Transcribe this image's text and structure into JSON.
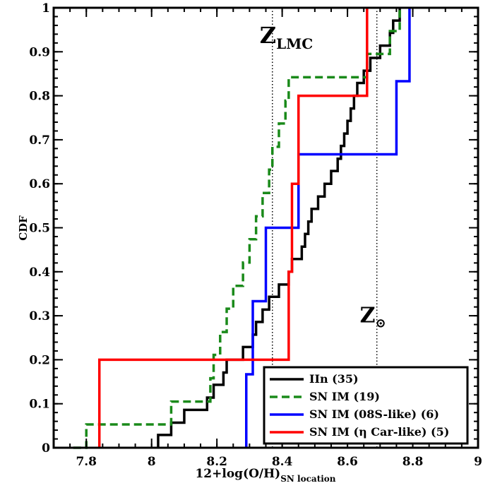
{
  "chart_data": {
    "type": "line",
    "step": true,
    "title": "",
    "xlabel": "12+log(O/H)",
    "xlabel_sub": "SN location",
    "ylabel": "CDF",
    "xlim": [
      7.7,
      9.0
    ],
    "ylim": [
      0,
      1.0
    ],
    "xticks": [
      7.8,
      8.0,
      8.2,
      8.4,
      8.6,
      8.8,
      9.0
    ],
    "xtick_labels": [
      "7.8",
      "8",
      "8.2",
      "8.4",
      "8.6",
      "8.8",
      "9"
    ],
    "yticks": [
      0,
      0.1,
      0.2,
      0.3,
      0.4,
      0.5,
      0.6,
      0.7,
      0.8,
      0.9,
      1.0
    ],
    "ytick_labels": [
      "0",
      "0.1",
      "0.2",
      "0.3",
      "0.4",
      "0.5",
      "0.6",
      "0.7",
      "0.8",
      "0.9",
      "1"
    ],
    "grid": false,
    "legend_position": "bottom-right",
    "reference_lines": [
      {
        "x": 8.37,
        "label": "Z",
        "sub": "LMC",
        "label_y": 0.92
      },
      {
        "x": 8.69,
        "label": "Z",
        "sub": "⊙",
        "label_y": 0.285
      }
    ],
    "series": [
      {
        "name": "IIn (35)",
        "color": "#000000",
        "dash": "solid",
        "x": [
          8.02,
          8.06,
          8.1,
          8.17,
          8.19,
          8.22,
          8.23,
          8.28,
          8.31,
          8.32,
          8.34,
          8.36,
          8.39,
          8.42,
          8.43,
          8.46,
          8.47,
          8.48,
          8.49,
          8.51,
          8.53,
          8.55,
          8.57,
          8.58,
          8.59,
          8.6,
          8.61,
          8.62,
          8.63,
          8.65,
          8.67,
          8.7,
          8.73,
          8.74,
          8.76
        ],
        "y": [
          0.029,
          0.057,
          0.086,
          0.114,
          0.143,
          0.171,
          0.2,
          0.229,
          0.257,
          0.286,
          0.314,
          0.343,
          0.371,
          0.4,
          0.429,
          0.457,
          0.486,
          0.514,
          0.543,
          0.571,
          0.6,
          0.629,
          0.657,
          0.686,
          0.714,
          0.743,
          0.771,
          0.8,
          0.829,
          0.857,
          0.886,
          0.914,
          0.943,
          0.971,
          1.0
        ]
      },
      {
        "name": "SN IM (19)",
        "color": "#1a8a1a",
        "dash": "dashed",
        "x": [
          7.76,
          7.8,
          8.06,
          8.18,
          8.19,
          8.21,
          8.23,
          8.25,
          8.28,
          8.3,
          8.32,
          8.34,
          8.36,
          8.37,
          8.39,
          8.41,
          8.42,
          8.45,
          8.66,
          8.73
        ],
        "y": [
          0.0,
          0.053,
          0.105,
          0.158,
          0.211,
          0.263,
          0.316,
          0.368,
          0.421,
          0.474,
          0.526,
          0.579,
          0.632,
          0.684,
          0.737,
          0.789,
          0.842,
          0.842,
          0.895,
          0.947
        ]
      },
      {
        "name": "SN IM (08S-like) (6)",
        "color": "#0000ff",
        "dash": "solid",
        "x": [
          8.29,
          8.31,
          8.35,
          8.45,
          8.75,
          8.79
        ],
        "y": [
          0.167,
          0.333,
          0.5,
          0.667,
          0.833,
          1.0
        ]
      },
      {
        "name": "SN IM (η Car-like) (5)",
        "color": "#ff0000",
        "dash": "solid",
        "x": [
          7.84,
          8.42,
          8.43,
          8.45,
          8.66
        ],
        "y": [
          0.2,
          0.4,
          0.6,
          0.8,
          1.0
        ]
      }
    ]
  }
}
